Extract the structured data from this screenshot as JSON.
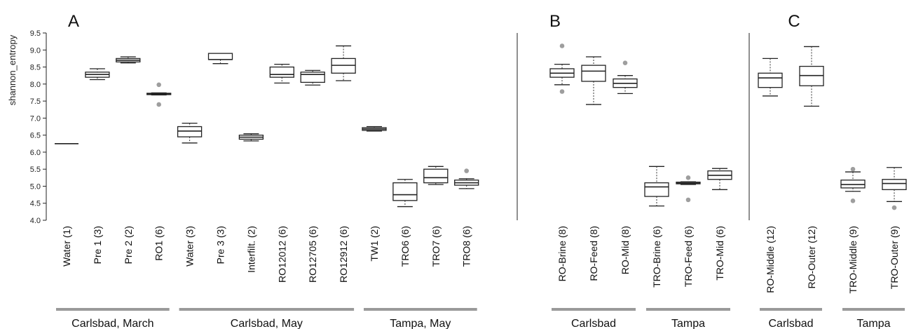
{
  "chart_data": {
    "type": "box",
    "ylabel": "shannon_entropy",
    "ylim": [
      4.0,
      9.5
    ],
    "yticks": [
      "4.0",
      "4.5",
      "5.0",
      "5.5",
      "6.0",
      "6.5",
      "7.0",
      "7.5",
      "8.0",
      "8.5",
      "9.0",
      "9.5"
    ],
    "colors": {
      "box_stroke": "#222222",
      "outlier": "#9e9e9e",
      "group_bar": "#9a9a9a"
    },
    "panels": [
      {
        "letter": "A",
        "boxes": [
          {
            "label": "Water (1)",
            "min": 6.25,
            "q1": 6.25,
            "median": 6.25,
            "q3": 6.25,
            "max": 6.25,
            "outliers": []
          },
          {
            "label": "Pre 1 (3)",
            "min": 8.13,
            "q1": 8.2,
            "median": 8.28,
            "q3": 8.35,
            "max": 8.45,
            "outliers": []
          },
          {
            "label": "Pre 2 (2)",
            "min": 8.62,
            "q1": 8.65,
            "median": 8.7,
            "q3": 8.75,
            "max": 8.8,
            "outliers": []
          },
          {
            "label": "RO1 (6)",
            "min": 7.68,
            "q1": 7.69,
            "median": 7.71,
            "q3": 7.73,
            "max": 7.74,
            "outliers": [
              7.98,
              7.4
            ]
          },
          {
            "label": "Water (3)",
            "min": 6.27,
            "q1": 6.45,
            "median": 6.62,
            "q3": 6.75,
            "max": 6.85,
            "outliers": []
          },
          {
            "label": "Pre 3 (3)",
            "min": 8.6,
            "q1": 8.72,
            "median": 8.72,
            "q3": 8.9,
            "max": 8.9,
            "outliers": []
          },
          {
            "label": "Interfilt. (2)",
            "min": 6.33,
            "q1": 6.38,
            "median": 6.44,
            "q3": 6.5,
            "max": 6.54,
            "outliers": []
          },
          {
            "label": "RO12012 (6)",
            "min": 8.03,
            "q1": 8.2,
            "median": 8.28,
            "q3": 8.5,
            "max": 8.58,
            "outliers": []
          },
          {
            "label": "RO12705 (6)",
            "min": 7.97,
            "q1": 8.05,
            "median": 8.28,
            "q3": 8.35,
            "max": 8.4,
            "outliers": []
          },
          {
            "label": "RO12912 (6)",
            "min": 8.1,
            "q1": 8.32,
            "median": 8.55,
            "q3": 8.75,
            "max": 9.12,
            "outliers": []
          },
          {
            "label": "TW1 (2)",
            "min": 6.62,
            "q1": 6.64,
            "median": 6.68,
            "q3": 6.72,
            "max": 6.75,
            "outliers": []
          },
          {
            "label": "TRO6 (6)",
            "min": 4.4,
            "q1": 4.58,
            "median": 4.75,
            "q3": 5.1,
            "max": 5.2,
            "outliers": []
          },
          {
            "label": "TRO7 (6)",
            "min": 5.05,
            "q1": 5.1,
            "median": 5.25,
            "q3": 5.5,
            "max": 5.58,
            "outliers": []
          },
          {
            "label": "TRO8 (6)",
            "min": 4.93,
            "q1": 5.03,
            "median": 5.1,
            "q3": 5.18,
            "max": 5.22,
            "outliers": [
              5.45
            ]
          }
        ],
        "groups": [
          {
            "label": "Carlsbad, March",
            "from": 0,
            "to": 3
          },
          {
            "label": "Carlsbad, May",
            "from": 4,
            "to": 9
          },
          {
            "label": "Tampa, May",
            "from": 10,
            "to": 13
          }
        ]
      },
      {
        "letter": "B",
        "boxes": [
          {
            "label": "RO-Brine (8)",
            "min": 7.98,
            "q1": 8.2,
            "median": 8.32,
            "q3": 8.45,
            "max": 8.58,
            "outliers": [
              9.12,
              7.78
            ]
          },
          {
            "label": "RO-Feed (8)",
            "min": 7.4,
            "q1": 8.08,
            "median": 8.38,
            "q3": 8.55,
            "max": 8.8,
            "outliers": []
          },
          {
            "label": "RO-Mid (8)",
            "min": 7.72,
            "q1": 7.9,
            "median": 8.02,
            "q3": 8.15,
            "max": 8.25,
            "outliers": [
              8.62
            ]
          },
          {
            "label": "TRO-Brine (6)",
            "min": 4.42,
            "q1": 4.7,
            "median": 4.98,
            "q3": 5.1,
            "max": 5.58,
            "outliers": []
          },
          {
            "label": "TRO-Feed (6)",
            "min": 5.05,
            "q1": 5.07,
            "median": 5.09,
            "q3": 5.12,
            "max": 5.13,
            "outliers": [
              5.25,
              4.6
            ]
          },
          {
            "label": "TRO-Mid (6)",
            "min": 4.9,
            "q1": 5.2,
            "median": 5.32,
            "q3": 5.45,
            "max": 5.52,
            "outliers": []
          }
        ],
        "groups": [
          {
            "label": "Carlsbad",
            "from": 0,
            "to": 2
          },
          {
            "label": "Tampa",
            "from": 3,
            "to": 5
          }
        ]
      },
      {
        "letter": "C",
        "boxes": [
          {
            "label": "RO-Middle (12)",
            "min": 7.65,
            "q1": 7.9,
            "median": 8.18,
            "q3": 8.32,
            "max": 8.75,
            "outliers": []
          },
          {
            "label": "RO-Outer (12)",
            "min": 7.35,
            "q1": 7.95,
            "median": 8.25,
            "q3": 8.52,
            "max": 9.1,
            "outliers": []
          },
          {
            "label": "TRO-Middle (9)",
            "min": 4.85,
            "q1": 4.95,
            "median": 5.05,
            "q3": 5.18,
            "max": 5.42,
            "outliers": [
              5.5,
              4.57
            ]
          },
          {
            "label": "TRO-Outer (9)",
            "min": 4.55,
            "q1": 4.9,
            "median": 5.08,
            "q3": 5.2,
            "max": 5.55,
            "outliers": [
              4.37
            ]
          }
        ],
        "groups": [
          {
            "label": "Carlsbad",
            "from": 0,
            "to": 1
          },
          {
            "label": "Tampa",
            "from": 2,
            "to": 3
          }
        ]
      }
    ]
  }
}
